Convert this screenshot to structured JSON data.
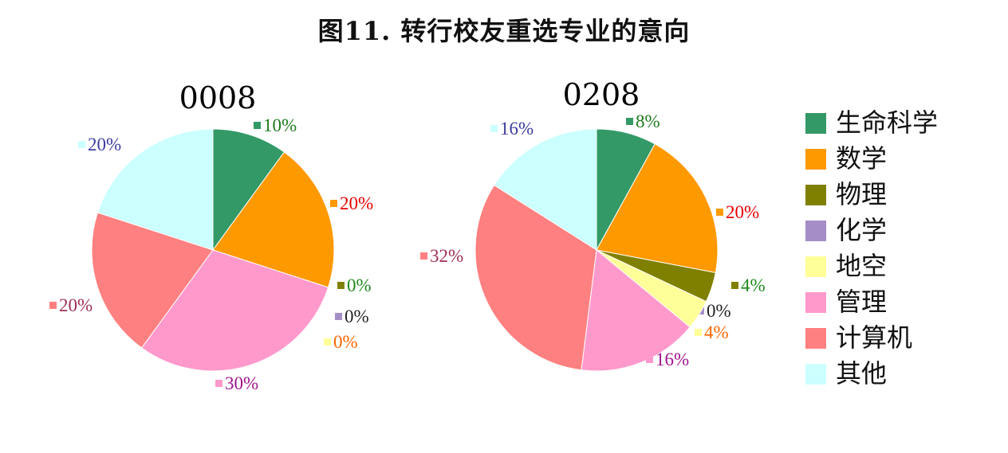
{
  "figure_title": "图11.   转行校友重选专业的意向",
  "legend": [
    "生命科学",
    "数学",
    "物理",
    "化学",
    "地空",
    "管理",
    "计算机",
    "其他"
  ],
  "colors": [
    "#339966",
    "#FF9900",
    "#808000",
    "#A58DC8",
    "#FFFF99",
    "#FF99CC",
    "#FF8080",
    "#CCFFFF"
  ],
  "label_colors": [
    "#1E7A1E",
    "#E60000",
    "#1E8A1E",
    "#222222",
    "#FF6600",
    "#A0148C",
    "#A03055",
    "#3C3CA0"
  ],
  "chart_data": [
    {
      "type": "pie",
      "title": "0008",
      "categories": [
        "生命科学",
        "数学",
        "物理",
        "化学",
        "地空",
        "管理",
        "计算机",
        "其他"
      ],
      "values": [
        10,
        20,
        0,
        0,
        0,
        30,
        20,
        20
      ],
      "labels": [
        "10%",
        "20%",
        "0%",
        "0%",
        "0%",
        "30%",
        "20%",
        "20%"
      ]
    },
    {
      "type": "pie",
      "title": "0208",
      "categories": [
        "生命科学",
        "数学",
        "物理",
        "化学",
        "地空",
        "管理",
        "计算机",
        "其他"
      ],
      "values": [
        8,
        20,
        4,
        0,
        4,
        16,
        32,
        16
      ],
      "labels": [
        "8%",
        "20%",
        "4%",
        "0%",
        "4%",
        "16%",
        "32%",
        "16%"
      ]
    }
  ]
}
